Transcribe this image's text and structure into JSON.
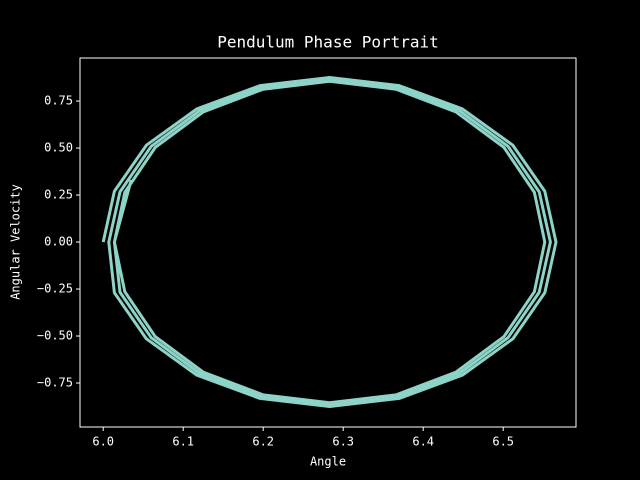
{
  "chart_data": {
    "type": "line",
    "title": "Pendulum Phase Portrait",
    "x_label": "Angle",
    "y_label": "Angular Velocity",
    "background": "#000000",
    "color": "#8dd3c7",
    "x": [
      6.0,
      6.014,
      6.054,
      6.117,
      6.196,
      6.283,
      6.37,
      6.449,
      6.512,
      6.552,
      6.566,
      6.552,
      6.512,
      6.449,
      6.37,
      6.283,
      6.196,
      6.117,
      6.054,
      6.014,
      6.007,
      6.021,
      6.06,
      6.121,
      6.198,
      6.283,
      6.368,
      6.445,
      6.506,
      6.545,
      6.559,
      6.545,
      6.506,
      6.445,
      6.368,
      6.283,
      6.198,
      6.121,
      6.06,
      6.021,
      6.014,
      6.027,
      6.065,
      6.125,
      6.2,
      6.283,
      6.366,
      6.441,
      6.501,
      6.539,
      6.552,
      6.539,
      6.501,
      6.441,
      6.366,
      6.283,
      6.2,
      6.125,
      6.065,
      6.027,
      6.014,
      6.035
    ],
    "values": [
      0,
      0.27,
      0.515,
      0.708,
      0.832,
      0.875,
      0.832,
      0.708,
      0.515,
      0.27,
      0,
      -0.27,
      -0.515,
      -0.708,
      -0.832,
      -0.875,
      -0.832,
      -0.708,
      -0.515,
      -0.27,
      0,
      0.267,
      0.509,
      0.7,
      0.823,
      0.865,
      0.823,
      0.7,
      0.509,
      0.267,
      0,
      -0.267,
      -0.509,
      -0.7,
      -0.823,
      -0.865,
      -0.823,
      -0.7,
      -0.509,
      -0.267,
      0,
      0.264,
      0.503,
      0.692,
      0.813,
      0.855,
      0.813,
      0.692,
      0.503,
      0.264,
      0,
      -0.264,
      -0.503,
      -0.692,
      -0.813,
      -0.855,
      -0.813,
      -0.692,
      -0.503,
      -0.264,
      0,
      0.33
    ],
    "xlim": [
      5.971,
      6.591
    ],
    "ylim": [
      -0.984,
      0.979
    ],
    "xticks": [
      {
        "value": 6.0,
        "label": "6.0"
      },
      {
        "value": 6.1,
        "label": "6.1"
      },
      {
        "value": 6.2,
        "label": "6.2"
      },
      {
        "value": 6.3,
        "label": "6.3"
      },
      {
        "value": 6.4,
        "label": "6.4"
      },
      {
        "value": 6.5,
        "label": "6.5"
      }
    ],
    "yticks": [
      {
        "value": -0.75,
        "label": "−0.75"
      },
      {
        "value": -0.5,
        "label": "−0.50"
      },
      {
        "value": -0.25,
        "label": "−0.25"
      },
      {
        "value": 0,
        "label": "0.00"
      },
      {
        "value": 0.25,
        "label": "0.25"
      },
      {
        "value": 0.5,
        "label": "0.50"
      },
      {
        "value": 0.75,
        "label": "0.75"
      }
    ]
  }
}
